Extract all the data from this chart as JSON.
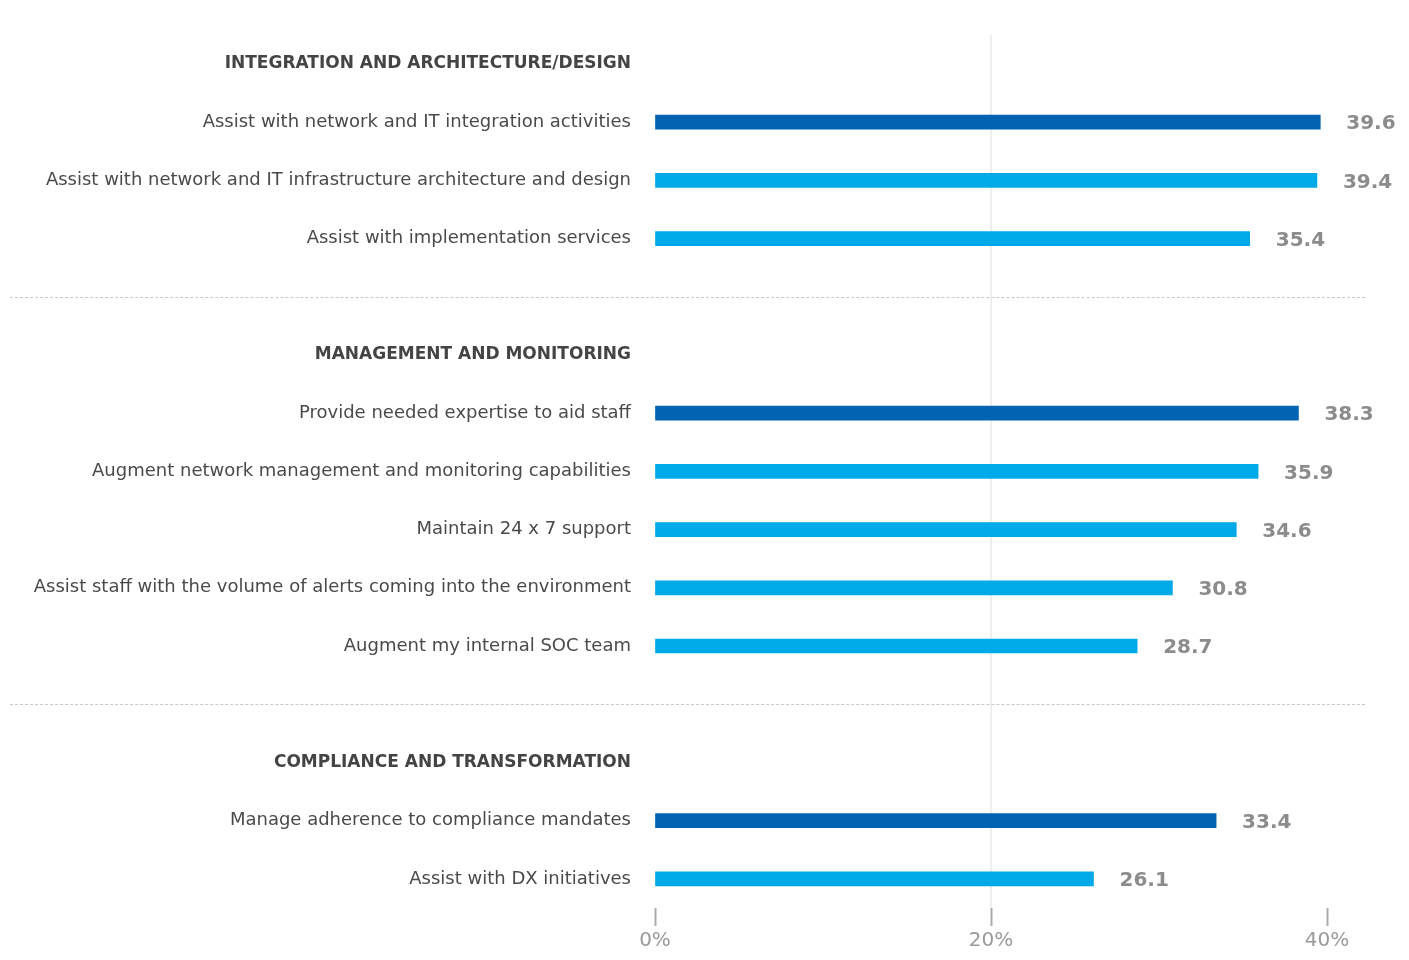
{
  "chart_data": {
    "type": "bar",
    "orientation": "horizontal",
    "categories": [
      "INTEGRATION AND ARCHITECTURE/DESIGN",
      "Assist with network and IT integration activities",
      "Assist with network and IT infrastructure architecture and design",
      "Assist with implementation services",
      null,
      "MANAGEMENT AND MONITORING",
      "Provide needed expertise to aid staff",
      "Augment network management and monitoring capabilities",
      "Maintain 24 x 7 support",
      "Assist staff with the volume of alerts coming into the environment",
      "Augment my internal SOC team",
      null,
      "COMPLIANCE AND TRANSFORMATION",
      "Manage adherence to compliance mandates",
      "Assist with DX initiatives"
    ],
    "values": [
      null,
      39.6,
      39.4,
      35.4,
      null,
      null,
      38.3,
      35.9,
      34.6,
      30.8,
      28.7,
      null,
      null,
      33.4,
      26.1
    ],
    "colors": [
      null,
      "#0063b1",
      "#00a9e8",
      "#00a9e8",
      null,
      null,
      "#0063b1",
      "#00a9e8",
      "#00a9e8",
      "#00a9e8",
      "#00a9e8",
      null,
      null,
      "#0063b1",
      "#00a9e8"
    ],
    "xlim": [
      0,
      40
    ],
    "xticks": [
      {
        "value": 0,
        "label": "0%"
      },
      {
        "value": 20,
        "label": "20%"
      },
      {
        "value": 40,
        "label": "40%"
      }
    ],
    "ref_lines": [
      {
        "axis": "x",
        "value": 20,
        "color": "#dedede"
      }
    ],
    "legend": false,
    "data_labels": true
  }
}
